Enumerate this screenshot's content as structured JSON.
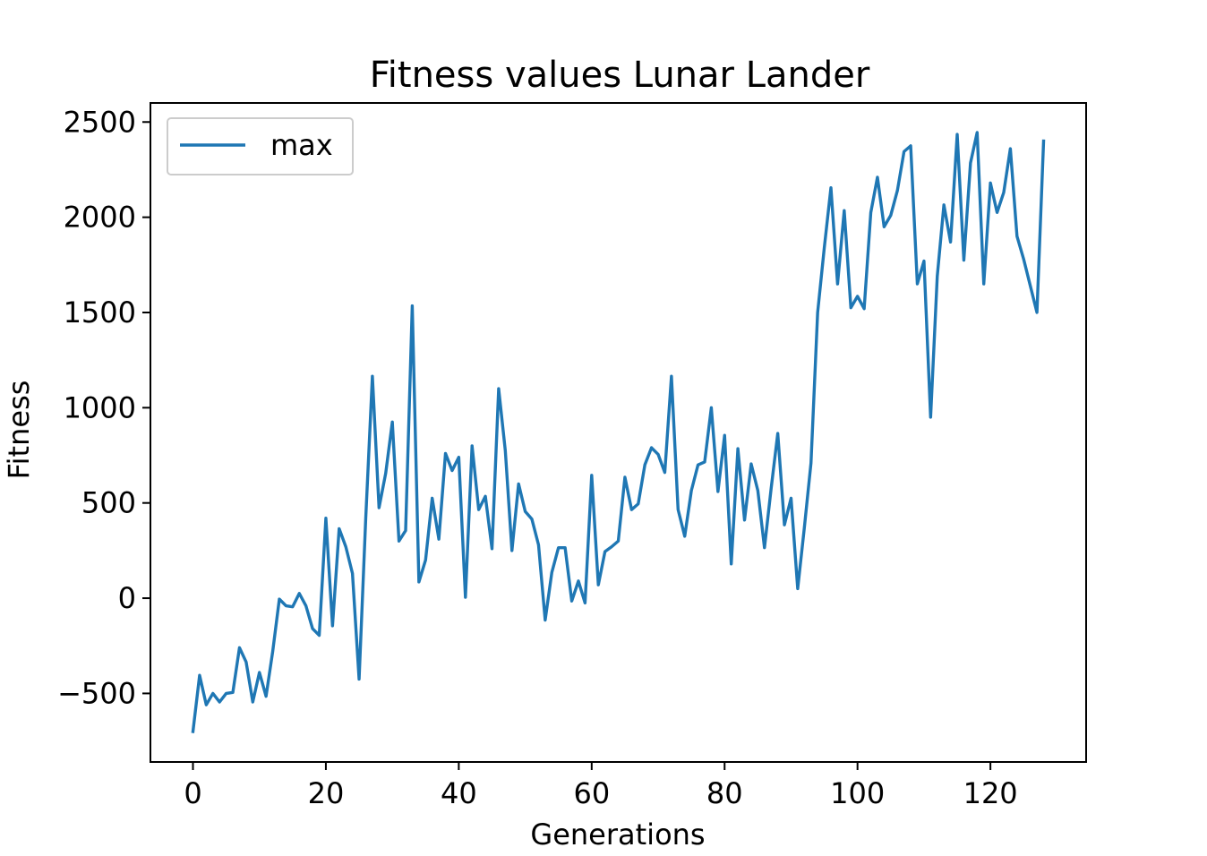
{
  "chart_data": {
    "type": "line",
    "title": "Fitness values Lunar Lander",
    "xlabel": "Generations",
    "ylabel": "Fitness",
    "xlim": [
      -6.4,
      134.4
    ],
    "ylim": [
      -860,
      2600
    ],
    "xticks": [
      0,
      20,
      40,
      60,
      80,
      100,
      120
    ],
    "yticks": [
      -500,
      0,
      500,
      1000,
      1500,
      2000,
      2500
    ],
    "ytick_labels": [
      "−500",
      "0",
      "500",
      "1000",
      "1500",
      "2000",
      "2500"
    ],
    "grid": false,
    "legend": {
      "placement": "upper-left",
      "entries": [
        "max"
      ]
    },
    "series": [
      {
        "name": "max",
        "color": "#1f77b4",
        "x": [
          0,
          1,
          2,
          3,
          4,
          5,
          6,
          7,
          8,
          9,
          10,
          11,
          12,
          13,
          14,
          15,
          16,
          17,
          18,
          19,
          20,
          21,
          22,
          23,
          24,
          25,
          26,
          27,
          28,
          29,
          30,
          31,
          32,
          33,
          34,
          35,
          36,
          37,
          38,
          39,
          40,
          41,
          42,
          43,
          44,
          45,
          46,
          47,
          48,
          49,
          50,
          51,
          52,
          53,
          54,
          55,
          56,
          57,
          58,
          59,
          60,
          61,
          62,
          63,
          64,
          65,
          66,
          67,
          68,
          69,
          70,
          71,
          72,
          73,
          74,
          75,
          76,
          77,
          78,
          79,
          80,
          81,
          82,
          83,
          84,
          85,
          86,
          87,
          88,
          89,
          90,
          91,
          92,
          93,
          94,
          95,
          96,
          97,
          98,
          99,
          100,
          101,
          102,
          103,
          104,
          105,
          106,
          107,
          108,
          109,
          110,
          111,
          112,
          113,
          114,
          115,
          116,
          117,
          118,
          119,
          120,
          121,
          122,
          123,
          124,
          125,
          126,
          127,
          128
        ],
        "values": [
          -700,
          -405,
          -560,
          -500,
          -545,
          -500,
          -495,
          -260,
          -335,
          -545,
          -390,
          -515,
          -280,
          -5,
          -40,
          -45,
          25,
          -40,
          -160,
          -195,
          420,
          -145,
          365,
          270,
          130,
          -425,
          420,
          1165,
          475,
          655,
          925,
          300,
          355,
          1535,
          85,
          200,
          525,
          310,
          760,
          670,
          740,
          5,
          800,
          465,
          535,
          260,
          1100,
          775,
          250,
          600,
          455,
          415,
          280,
          -115,
          135,
          265,
          265,
          -15,
          90,
          -25,
          645,
          70,
          245,
          270,
          300,
          635,
          465,
          495,
          700,
          790,
          755,
          660,
          1165,
          465,
          325,
          565,
          700,
          715,
          1000,
          560,
          855,
          180,
          785,
          410,
          705,
          565,
          265,
          575,
          865,
          385,
          525,
          50,
          370,
          710,
          1500,
          1840,
          2155,
          1650,
          2035,
          1525,
          1585,
          1520,
          2025,
          2210,
          1950,
          2010,
          2140,
          2345,
          2375,
          1650,
          1770,
          950,
          1690,
          2065,
          1870,
          2435,
          1775,
          2285,
          2445,
          1650,
          2180,
          2025,
          2130,
          2360,
          1900,
          1780,
          1640,
          1500,
          2400
        ]
      }
    ]
  }
}
